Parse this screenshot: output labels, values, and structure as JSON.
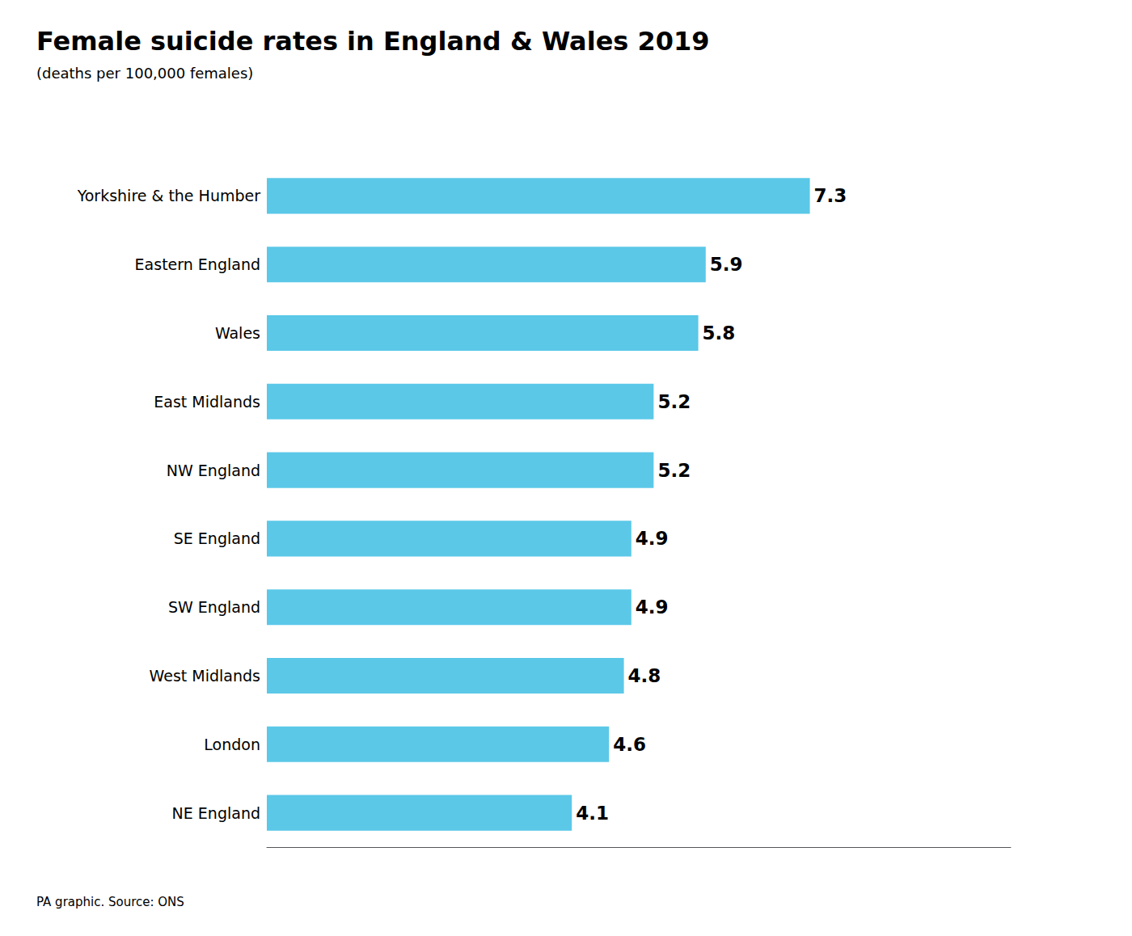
{
  "chart_data": {
    "type": "bar",
    "orientation": "horizontal",
    "title": "Female suicide rates in England & Wales 2019",
    "subtitle": "(deaths per 100,000 females)",
    "annotations": [
      "PA graphic. Source: ONS"
    ],
    "categories": [
      "Yorkshire & the Humber",
      "Eastern England",
      "Wales",
      "East Midlands",
      "NW England",
      "SE England",
      "SW England",
      "West Midlands",
      "London",
      "NE England"
    ],
    "values": [
      7.3,
      5.9,
      5.8,
      5.2,
      5.2,
      4.9,
      4.9,
      4.8,
      4.6,
      4.1
    ],
    "color": "#5BC8E8",
    "xlim": [
      0,
      10.0
    ],
    "data_labels": true,
    "tick_labels": "y",
    "grid": false
  }
}
